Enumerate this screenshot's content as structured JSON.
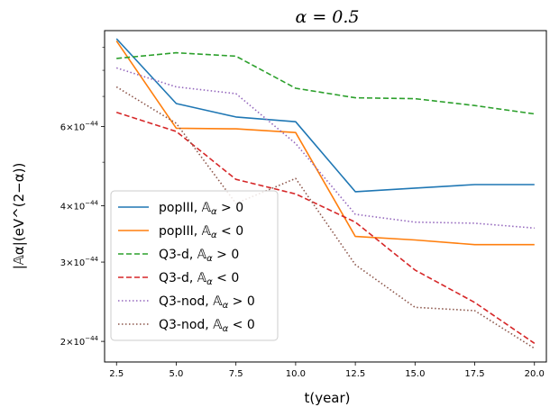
{
  "chart_data": {
    "type": "line",
    "title": "α = 0.5",
    "xlabel": "t(year)",
    "ylabel": "|𝔸α|(eV^(2−α))",
    "yscale": "log",
    "xlim": [
      2.0,
      20.5
    ],
    "ylim": [
      1.8e-44,
      9.8e-44
    ],
    "x": [
      2.5,
      5.0,
      7.5,
      10.0,
      12.5,
      15.0,
      17.5,
      20.0
    ],
    "xticks": [
      2.5,
      5.0,
      7.5,
      10.0,
      12.5,
      15.0,
      17.5,
      20.0
    ],
    "xtick_labels": [
      "2.5",
      "5.0",
      "7.5",
      "10.0",
      "12.5",
      "15.0",
      "17.5",
      "20.0"
    ],
    "yticks_major": [
      {
        "value": 2e-44,
        "mantissa": "2",
        "exponent": "−44"
      },
      {
        "value": 3e-44,
        "mantissa": "3",
        "exponent": "−44"
      },
      {
        "value": 4e-44,
        "mantissa": "4",
        "exponent": "−44"
      },
      {
        "value": 6e-44,
        "mantissa": "6",
        "exponent": "−44"
      }
    ],
    "yticks_minor": [
      5e-44,
      7e-44,
      8e-44,
      9e-44
    ],
    "legend_position": "lower-left",
    "series": [
      {
        "name": "popIII, 𝔸α > 0",
        "label_main": "popIII, ",
        "label_sym": "𝔸",
        "label_sub": "α",
        "label_op": " > 0",
        "color": "#1f77b4",
        "dash": "solid",
        "values": [
          9.4e-44,
          6.75e-44,
          6.3e-44,
          6.15e-44,
          4.3e-44,
          4.38e-44,
          4.46e-44,
          4.46e-44
        ]
      },
      {
        "name": "popIII, 𝔸α < 0",
        "label_main": "popIII, ",
        "label_sym": "𝔸",
        "label_sub": "α",
        "label_op": " < 0",
        "color": "#ff7f0e",
        "dash": "solid",
        "values": [
          9.3e-44,
          5.95e-44,
          5.93e-44,
          5.82e-44,
          3.42e-44,
          3.36e-44,
          3.28e-44,
          3.28e-44
        ]
      },
      {
        "name": "Q3-d, 𝔸α > 0",
        "label_main": "Q3-d, ",
        "label_sym": "𝔸",
        "label_sub": "α",
        "label_op": " > 0",
        "color": "#2ca02c",
        "dash": "dashed",
        "values": [
          8.5e-44,
          8.75e-44,
          8.6e-44,
          7.3e-44,
          6.95e-44,
          6.92e-44,
          6.68e-44,
          6.4e-44
        ]
      },
      {
        "name": "Q3-d, 𝔸α < 0",
        "label_main": "Q3-d, ",
        "label_sym": "𝔸",
        "label_sub": "α",
        "label_op": " < 0",
        "color": "#d62728",
        "dash": "dashed",
        "values": [
          6.45e-44,
          5.85e-44,
          4.58e-44,
          4.25e-44,
          3.68e-44,
          2.88e-44,
          2.44e-44,
          1.98e-44
        ]
      },
      {
        "name": "Q3-nod, 𝔸α > 0",
        "label_main": "Q3-nod, ",
        "label_sym": "𝔸",
        "label_sub": "α",
        "label_op": " > 0",
        "color": "#9467bd",
        "dash": "dotted",
        "values": [
          8.1e-44,
          7.35e-44,
          7.1e-44,
          5.5e-44,
          3.83e-44,
          3.68e-44,
          3.66e-44,
          3.57e-44
        ]
      },
      {
        "name": "Q3-nod, 𝔸α < 0",
        "label_main": "Q3-nod, ",
        "label_sym": "𝔸",
        "label_sub": "α",
        "label_op": " < 0",
        "color": "#8c564b",
        "dash": "dotted",
        "values": [
          7.35e-44,
          6.1e-44,
          4.05e-44,
          4.6e-44,
          2.96e-44,
          2.38e-44,
          2.34e-44,
          1.93e-44
        ]
      }
    ]
  }
}
